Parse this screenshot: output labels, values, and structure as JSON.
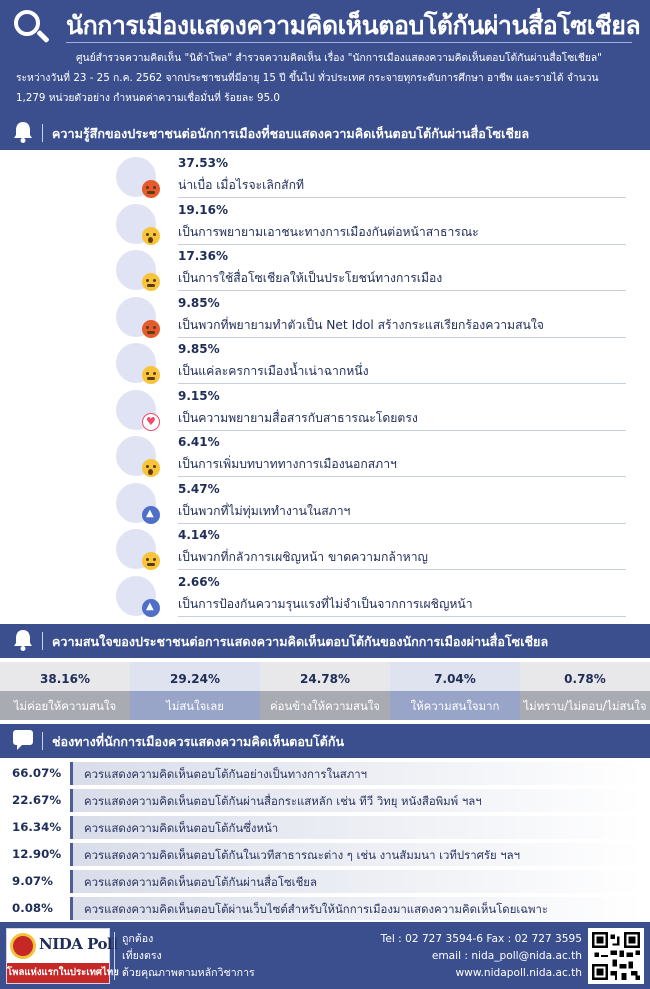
{
  "header": {
    "title": "นักการเมืองแสดงความคิดเห็นตอบโต้กันผ่านสื่อโซเชียล",
    "description_lines": [
      "ศูนย์สำรวจความคิดเห็น \"นิด้าโพล\" สำรวจความคิดเห็น เรื่อง \"นักการเมืองแสดงความคิดเห็นตอบโต้กันผ่านสื่อโซเชียล\"",
      "ระหว่างวันที่ 23 - 25 ก.ค. 2562 จากประชาชนที่มีอายุ 15 ปี ขึ้นไป ทั่วประเทศ กระจายทุกระดับการศึกษา อาชีพ และรายได้ จำนวน",
      "1,279 หน่วยตัวอย่าง กำหนดค่าความเชื่อมั่นที่ ร้อยละ 95.0"
    ]
  },
  "section1": {
    "title": "ความรู้สึกของประชาชนต่อนักการเมืองที่ชอบแสดงความคิดเห็นตอบโต้กันผ่านสื่อโซเชียล",
    "icon": "bell-icon",
    "items": [
      {
        "pct": "37.53%",
        "label": "น่าเบื่อ เมื่อไรจะเลิกสักที",
        "reaction": "angry"
      },
      {
        "pct": "19.16%",
        "label": "เป็นการพยายามเอาชนะทางการเมืองกันต่อหน้าสาธารณะ",
        "reaction": "wow"
      },
      {
        "pct": "17.36%",
        "label": "เป็นการใช้สื่อโซเชียลให้เป็นประโยชน์ทางการเมือง",
        "reaction": "sad"
      },
      {
        "pct": "9.85%",
        "label": "เป็นพวกที่พยายามทำตัวเป็น Net Idol สร้างกระแสเรียกร้องความสนใจ",
        "reaction": "angry"
      },
      {
        "pct": "9.85%",
        "label": "เป็นแค่ละครการเมืองน้ำเน่าฉากหนึ่ง",
        "reaction": "haha"
      },
      {
        "pct": "9.15%",
        "label": "เป็นความพยายามสื่อสารกับสาธารณะโดยตรง",
        "reaction": "heart"
      },
      {
        "pct": "6.41%",
        "label": "เป็นการเพิ่มบทบาททางการเมืองนอกสภาฯ",
        "reaction": "wow"
      },
      {
        "pct": "5.47%",
        "label": "เป็นพวกที่ไม่ทุ่มเททำงานในสภาฯ",
        "reaction": "like"
      },
      {
        "pct": "4.14%",
        "label": "เป็นพวกที่กลัวการเผชิญหน้า ขาดความกล้าหาญ",
        "reaction": "sad"
      },
      {
        "pct": "2.66%",
        "label": "เป็นการป้องกันความรุนแรงที่ไม่จำเป็นจากการเผชิญหน้า",
        "reaction": "like"
      }
    ]
  },
  "section2": {
    "title": "ความสนใจของประชาชนต่อการแสดงความคิดเห็นตอบโต้กันของนักการเมืองผ่านสื่อโซเชียล",
    "icon": "bell-icon",
    "cells": [
      {
        "pct": "38.16%",
        "label": "ไม่ค่อยให้ความสนใจ",
        "top_color": "#e8e8ea",
        "bottom_color": "#a9abb2"
      },
      {
        "pct": "29.24%",
        "label": "ไม่สนใจเลย",
        "top_color": "#dfe3ef",
        "bottom_color": "#98a4c8"
      },
      {
        "pct": "24.78%",
        "label": "ค่อนข้างให้ความสนใจ",
        "top_color": "#e8e8ea",
        "bottom_color": "#a9abb2"
      },
      {
        "pct": "7.04%",
        "label": "ให้ความสนใจมาก",
        "top_color": "#dfe3ef",
        "bottom_color": "#98a4c8"
      },
      {
        "pct": "0.78%",
        "label": "ไม่ทราบ/ไม่ตอบ/ไม่สนใจ",
        "top_color": "#e8e8ea",
        "bottom_color": "#a9abb2"
      }
    ]
  },
  "section3": {
    "title": "ช่องทางที่นักการเมืองควรแสดงความคิดเห็นตอบโต้กัน",
    "icon": "speech-bubble-icon",
    "items": [
      {
        "pct": "66.07%",
        "label": "ควรแสดงความคิดเห็นตอบโต้กันอย่างเป็นทางการในสภาฯ"
      },
      {
        "pct": "22.67%",
        "label": "ควรแสดงความคิดเห็นตอบโต้กันผ่านสื่อกระแสหลัก เช่น ทีวี วิทยุ หนังสือพิมพ์ ฯลฯ"
      },
      {
        "pct": "16.34%",
        "label": "ควรแสดงความคิดเห็นตอบโต้กันซึ่งหน้า"
      },
      {
        "pct": "12.90%",
        "label": "ควรแสดงความคิดเห็นตอบโต้กันในเวทีสาธารณะต่าง ๆ เช่น งานสัมมนา เวทีปราศรัย ฯลฯ"
      },
      {
        "pct": "9.07%",
        "label": "ควรแสดงความคิดเห็นตอบโต้กันผ่านสื่อโซเชียล"
      },
      {
        "pct": "0.08%",
        "label": "ควรแสดงความคิดเห็นตอบโต้ผ่านเว็บไซต์สำหรับให้นักการเมืองมาแสดงความคิดเห็นโดยเฉพาะ"
      }
    ]
  },
  "footer": {
    "logo_text": "NIDA Poll",
    "logo_tagline": "โพลแห่งแรกในประเทศไทย",
    "slogan": [
      "ถูกต้อง",
      "เที่ยงตรง",
      "ด้วยคุณภาพตามหลักวิชาการ"
    ],
    "tel": "Tel : 02 727 3594-6 Fax : 02 727 3595",
    "email": "email : nida_poll@nida.ac.th",
    "website": "www.nidapoll.nida.ac.th"
  },
  "colors": {
    "primary": "#3b4f8e",
    "text": "#1f2d57"
  }
}
